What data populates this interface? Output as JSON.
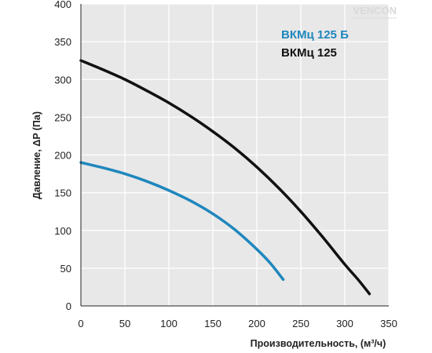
{
  "watermark": {
    "brand": "VENCON",
    "tagline": "вентиляционное оборудование"
  },
  "chart_data": {
    "type": "line",
    "xlabel": "Производительность, (м³/ч)",
    "ylabel": "Давление, ΔP (Па)",
    "xlim": [
      0,
      350
    ],
    "ylim": [
      0,
      400
    ],
    "xticks": [
      0,
      50,
      100,
      150,
      200,
      250,
      300,
      350
    ],
    "yticks": [
      0,
      50,
      100,
      150,
      200,
      250,
      300,
      350,
      400
    ],
    "grid": true,
    "legend_position": "top-right",
    "series": [
      {
        "name": "ВКМц 125 Б",
        "color": "#1f87bd",
        "x": [
          0,
          25,
          50,
          75,
          100,
          125,
          150,
          175,
          200,
          215,
          230
        ],
        "y": [
          190,
          183,
          175,
          165,
          153,
          139,
          122,
          101,
          75,
          57,
          35
        ]
      },
      {
        "name": "ВКМц 125",
        "color": "#111111",
        "x": [
          0,
          25,
          50,
          75,
          100,
          125,
          150,
          175,
          200,
          225,
          250,
          275,
          300,
          315,
          328
        ],
        "y": [
          325,
          313,
          300,
          285,
          269,
          251,
          231,
          209,
          184,
          156,
          125,
          91,
          55,
          35,
          16
        ]
      }
    ]
  }
}
